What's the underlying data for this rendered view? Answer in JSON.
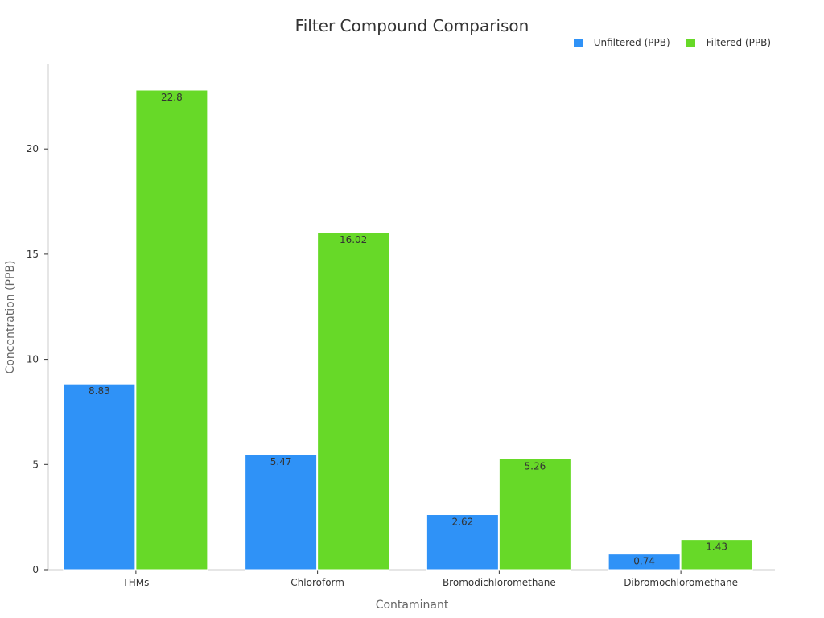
{
  "chart_data": {
    "type": "bar",
    "title": "Filter Compound Comparison",
    "xlabel": "Contaminant",
    "ylabel": "Concentration (PPB)",
    "categories": [
      "THMs",
      "Chloroform",
      "Bromodichloromethane",
      "Dibromochloromethane"
    ],
    "series": [
      {
        "name": "Unfiltered (PPB)",
        "color": "#2f92f7",
        "values": [
          8.83,
          5.47,
          2.62,
          0.74
        ]
      },
      {
        "name": "Filtered (PPB)",
        "color": "#67d928",
        "values": [
          22.8,
          16.02,
          5.26,
          1.43
        ]
      }
    ],
    "ylim": [
      0,
      24
    ],
    "yticks": [
      0,
      5,
      10,
      15,
      20
    ],
    "grid": false,
    "legend_position": "top-right"
  }
}
